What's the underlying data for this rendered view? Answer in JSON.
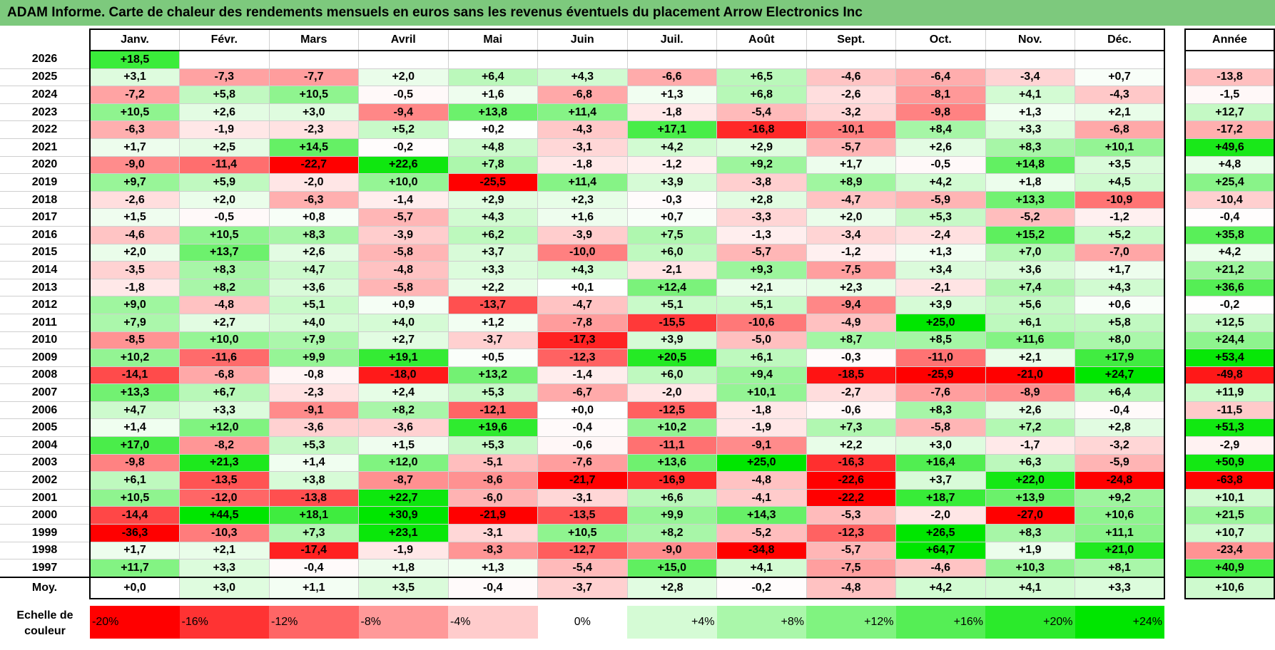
{
  "title": "ADAM Informe. Carte de chaleur des rendements mensuels en euros sans les revenus éventuels du placement Arrow Electronics Inc",
  "chart_data": {
    "type": "heatmap",
    "title": "ADAM Informe. Carte de chaleur des rendements mensuels en euros sans les revenus éventuels du placement Arrow Electronics Inc",
    "columns": [
      "Janv.",
      "Févr.",
      "Mars",
      "Avril",
      "Mai",
      "Juin",
      "Juil.",
      "Août",
      "Sept.",
      "Oct.",
      "Nov.",
      "Déc."
    ],
    "annual_header": "Année",
    "rows": [
      {
        "year": "2026",
        "values": [
          "+18,5",
          "",
          "",
          "",
          "",
          "",
          "",
          "",
          "",
          "",
          "",
          ""
        ],
        "annual": ""
      },
      {
        "year": "2025",
        "values": [
          "+3,1",
          "-7,3",
          "-7,7",
          "+2,0",
          "+6,4",
          "+4,3",
          "-6,6",
          "+6,5",
          "-4,6",
          "-6,4",
          "-3,4",
          "+0,7"
        ],
        "annual": "-13,8"
      },
      {
        "year": "2024",
        "values": [
          "-7,2",
          "+5,8",
          "+10,5",
          "-0,5",
          "+1,6",
          "-6,8",
          "+1,3",
          "+6,8",
          "-2,6",
          "-8,1",
          "+4,1",
          "-4,3"
        ],
        "annual": "-1,5"
      },
      {
        "year": "2023",
        "values": [
          "+10,5",
          "+2,6",
          "+3,0",
          "-9,4",
          "+13,8",
          "+11,4",
          "-1,8",
          "-5,4",
          "-3,2",
          "-9,8",
          "+1,3",
          "+2,1"
        ],
        "annual": "+12,7"
      },
      {
        "year": "2022",
        "values": [
          "-6,3",
          "-1,9",
          "-2,3",
          "+5,2",
          "+0,2",
          "-4,3",
          "+17,1",
          "-16,8",
          "-10,1",
          "+8,4",
          "+3,3",
          "-6,8"
        ],
        "annual": "-17,2"
      },
      {
        "year": "2021",
        "values": [
          "+1,7",
          "+2,5",
          "+14,5",
          "-0,2",
          "+4,8",
          "-3,1",
          "+4,2",
          "+2,9",
          "-5,7",
          "+2,6",
          "+8,3",
          "+10,1"
        ],
        "annual": "+49,6"
      },
      {
        "year": "2020",
        "values": [
          "-9,0",
          "-11,4",
          "-22,7",
          "+22,6",
          "+7,8",
          "-1,8",
          "-1,2",
          "+9,2",
          "+1,7",
          "-0,5",
          "+14,8",
          "+3,5"
        ],
        "annual": "+4,8"
      },
      {
        "year": "2019",
        "values": [
          "+9,7",
          "+5,9",
          "-2,0",
          "+10,0",
          "-25,5",
          "+11,4",
          "+3,9",
          "-3,8",
          "+8,9",
          "+4,2",
          "+1,8",
          "+4,5"
        ],
        "annual": "+25,4"
      },
      {
        "year": "2018",
        "values": [
          "-2,6",
          "+2,0",
          "-6,3",
          "-1,4",
          "+2,9",
          "+2,3",
          "-0,3",
          "+2,8",
          "-4,7",
          "-5,9",
          "+13,3",
          "-10,9"
        ],
        "annual": "-10,4"
      },
      {
        "year": "2017",
        "values": [
          "+1,5",
          "-0,5",
          "+0,8",
          "-5,7",
          "+4,3",
          "+1,6",
          "+0,7",
          "-3,3",
          "+2,0",
          "+5,3",
          "-5,2",
          "-1,2"
        ],
        "annual": "-0,4"
      },
      {
        "year": "2016",
        "values": [
          "-4,6",
          "+10,5",
          "+8,3",
          "-3,9",
          "+6,2",
          "-3,9",
          "+7,5",
          "-1,3",
          "-3,4",
          "-2,4",
          "+15,2",
          "+5,2"
        ],
        "annual": "+35,8"
      },
      {
        "year": "2015",
        "values": [
          "+2,0",
          "+13,7",
          "+2,6",
          "-5,8",
          "+3,7",
          "-10,0",
          "+6,0",
          "-5,7",
          "-1,2",
          "+1,3",
          "+7,0",
          "-7,0"
        ],
        "annual": "+4,2"
      },
      {
        "year": "2014",
        "values": [
          "-3,5",
          "+8,3",
          "+4,7",
          "-4,8",
          "+3,3",
          "+4,3",
          "-2,1",
          "+9,3",
          "-7,5",
          "+3,4",
          "+3,6",
          "+1,7"
        ],
        "annual": "+21,2"
      },
      {
        "year": "2013",
        "values": [
          "-1,8",
          "+8,2",
          "+3,6",
          "-5,8",
          "+2,2",
          "+0,1",
          "+12,4",
          "+2,1",
          "+2,3",
          "-2,1",
          "+7,4",
          "+4,3"
        ],
        "annual": "+36,6"
      },
      {
        "year": "2012",
        "values": [
          "+9,0",
          "-4,8",
          "+5,1",
          "+0,9",
          "-13,7",
          "-4,7",
          "+5,1",
          "+5,1",
          "-9,4",
          "+3,9",
          "+5,6",
          "+0,6"
        ],
        "annual": "-0,2"
      },
      {
        "year": "2011",
        "values": [
          "+7,9",
          "+2,7",
          "+4,0",
          "+4,0",
          "+1,2",
          "-7,8",
          "-15,5",
          "-10,6",
          "-4,9",
          "+25,0",
          "+6,1",
          "+5,8"
        ],
        "annual": "+12,5"
      },
      {
        "year": "2010",
        "values": [
          "-8,5",
          "+10,0",
          "+7,9",
          "+2,7",
          "-3,7",
          "-17,3",
          "+3,9",
          "-5,0",
          "+8,7",
          "+8,5",
          "+11,6",
          "+8,0"
        ],
        "annual": "+24,4"
      },
      {
        "year": "2009",
        "values": [
          "+10,2",
          "-11,6",
          "+9,9",
          "+19,1",
          "+0,5",
          "-12,3",
          "+20,5",
          "+6,1",
          "-0,3",
          "-11,0",
          "+2,1",
          "+17,9"
        ],
        "annual": "+53,4"
      },
      {
        "year": "2008",
        "values": [
          "-14,1",
          "-6,8",
          "-0,8",
          "-18,0",
          "+13,2",
          "-1,4",
          "+6,0",
          "+9,4",
          "-18,5",
          "-25,9",
          "-21,0",
          "+24,7"
        ],
        "annual": "-49,8"
      },
      {
        "year": "2007",
        "values": [
          "+13,3",
          "+6,7",
          "-2,3",
          "+2,4",
          "+5,3",
          "-6,7",
          "-2,0",
          "+10,1",
          "-2,7",
          "-7,6",
          "-8,9",
          "+6,4"
        ],
        "annual": "+11,9"
      },
      {
        "year": "2006",
        "values": [
          "+4,7",
          "+3,3",
          "-9,1",
          "+8,2",
          "-12,1",
          "+0,0",
          "-12,5",
          "-1,8",
          "-0,6",
          "+8,3",
          "+2,6",
          "-0,4"
        ],
        "annual": "-11,5"
      },
      {
        "year": "2005",
        "values": [
          "+1,4",
          "+12,0",
          "-3,6",
          "-3,6",
          "+19,6",
          "-0,4",
          "+10,2",
          "-1,9",
          "+7,3",
          "-5,8",
          "+7,2",
          "+2,8"
        ],
        "annual": "+51,3"
      },
      {
        "year": "2004",
        "values": [
          "+17,0",
          "-8,2",
          "+5,3",
          "+1,5",
          "+5,3",
          "-0,6",
          "-11,1",
          "-9,1",
          "+2,2",
          "+3,0",
          "-1,7",
          "-3,2"
        ],
        "annual": "-2,9"
      },
      {
        "year": "2003",
        "values": [
          "-9,8",
          "+21,3",
          "+1,4",
          "+12,0",
          "-5,1",
          "-7,6",
          "+13,6",
          "+25,0",
          "-16,3",
          "+16,4",
          "+6,3",
          "-5,9"
        ],
        "annual": "+50,9"
      },
      {
        "year": "2002",
        "values": [
          "+6,1",
          "-13,5",
          "+3,8",
          "-8,7",
          "-8,6",
          "-21,7",
          "-16,9",
          "-4,8",
          "-22,6",
          "+3,7",
          "+22,0",
          "-24,8"
        ],
        "annual": "-63,8"
      },
      {
        "year": "2001",
        "values": [
          "+10,5",
          "-12,0",
          "-13,8",
          "+22,7",
          "-6,0",
          "-3,1",
          "+6,6",
          "-4,1",
          "-22,2",
          "+18,7",
          "+13,9",
          "+9,2"
        ],
        "annual": "+10,1"
      },
      {
        "year": "2000",
        "values": [
          "-14,4",
          "+44,5",
          "+18,1",
          "+30,9",
          "-21,9",
          "-13,5",
          "+9,9",
          "+14,3",
          "-5,3",
          "-2,0",
          "-27,0",
          "+10,6"
        ],
        "annual": "+21,5"
      },
      {
        "year": "1999",
        "values": [
          "-36,3",
          "-10,3",
          "+7,3",
          "+23,1",
          "-3,1",
          "+10,5",
          "+8,2",
          "-5,2",
          "-12,3",
          "+26,5",
          "+8,3",
          "+11,1"
        ],
        "annual": "+10,7"
      },
      {
        "year": "1998",
        "values": [
          "+1,7",
          "+2,1",
          "-17,4",
          "-1,9",
          "-8,3",
          "-12,7",
          "-9,0",
          "-34,8",
          "-5,7",
          "+64,7",
          "+1,9",
          "+21,0"
        ],
        "annual": "-23,4"
      },
      {
        "year": "1997",
        "values": [
          "+11,7",
          "+3,3",
          "-0,4",
          "+1,8",
          "+1,3",
          "-5,4",
          "+15,0",
          "+4,1",
          "-7,5",
          "-4,6",
          "+10,3",
          "+8,1"
        ],
        "annual": "+40,9"
      }
    ],
    "average": {
      "label": "Moy.",
      "values": [
        "+0,0",
        "+3,0",
        "+1,1",
        "+3,5",
        "-0,4",
        "-3,7",
        "+2,8",
        "-0,2",
        "-4,8",
        "+4,2",
        "+4,1",
        "+3,3"
      ],
      "annual": "+10,6"
    },
    "color_scale": {
      "label": "Echelle de couleur",
      "stops": [
        "-20%",
        "-16%",
        "-12%",
        "-8%",
        "-4%",
        "0%",
        "+4%",
        "+8%",
        "+12%",
        "+16%",
        "+20%",
        "+24%"
      ]
    }
  },
  "colors": {
    "title_bar": "#7dc97d",
    "red_strong": "#ff0000",
    "white": "#ffffff",
    "green_strong": "#00e600"
  }
}
